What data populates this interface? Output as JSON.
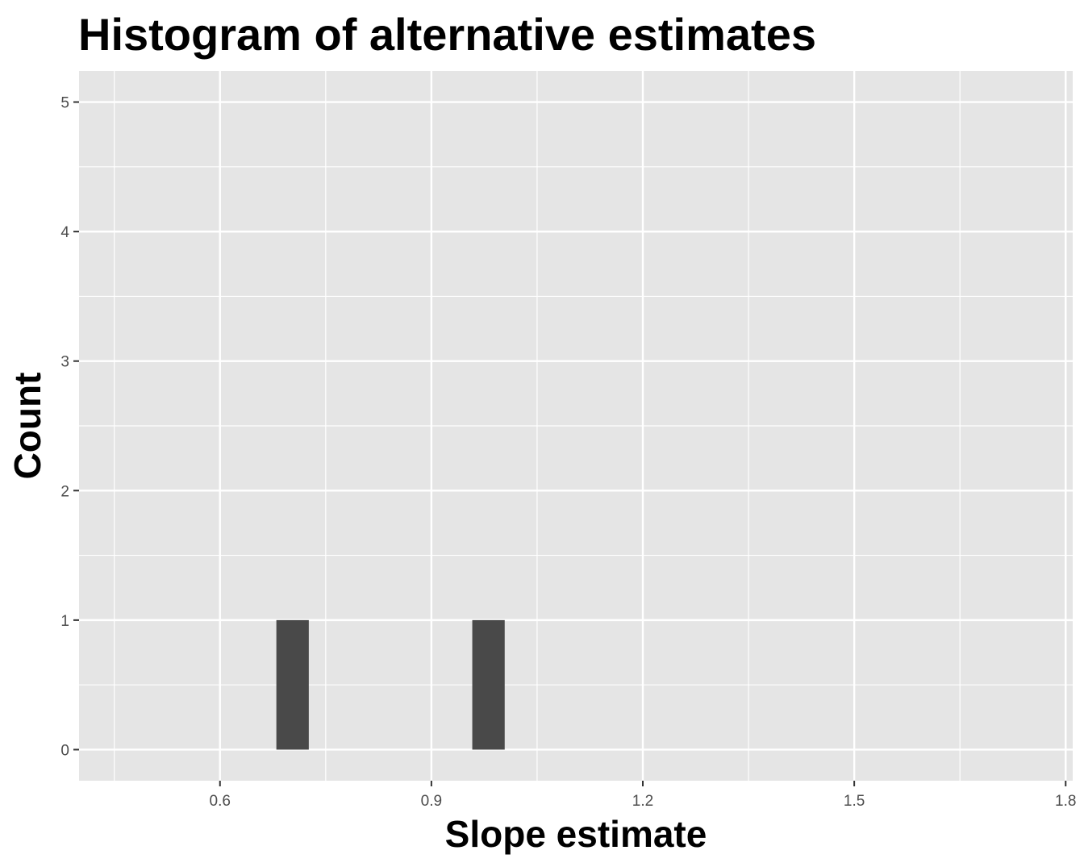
{
  "chart_data": {
    "type": "bar",
    "title": "Histogram of alternative estimates",
    "xlabel": "Slope estimate",
    "ylabel": "Count",
    "xlim": [
      0.4,
      1.81
    ],
    "ylim": [
      -0.24,
      5.24
    ],
    "x_ticks": [
      0.6,
      0.9,
      1.2,
      1.5,
      1.8
    ],
    "x_tick_labels": [
      "0.6",
      "0.9",
      "1.2",
      "1.5",
      "1.8"
    ],
    "y_ticks": [
      0,
      1,
      2,
      3,
      4,
      5
    ],
    "y_tick_labels": [
      "0",
      "1",
      "2",
      "3",
      "4",
      "5"
    ],
    "bins": [
      {
        "x_start": 0.68,
        "x_end": 0.726,
        "count": 1
      },
      {
        "x_start": 0.958,
        "x_end": 1.004,
        "count": 1
      }
    ],
    "grid": true,
    "colors": {
      "panel_background": "#e5e5e5",
      "grid_major": "#ffffff",
      "bar_fill": "#494949",
      "tick_color": "#333333"
    }
  }
}
